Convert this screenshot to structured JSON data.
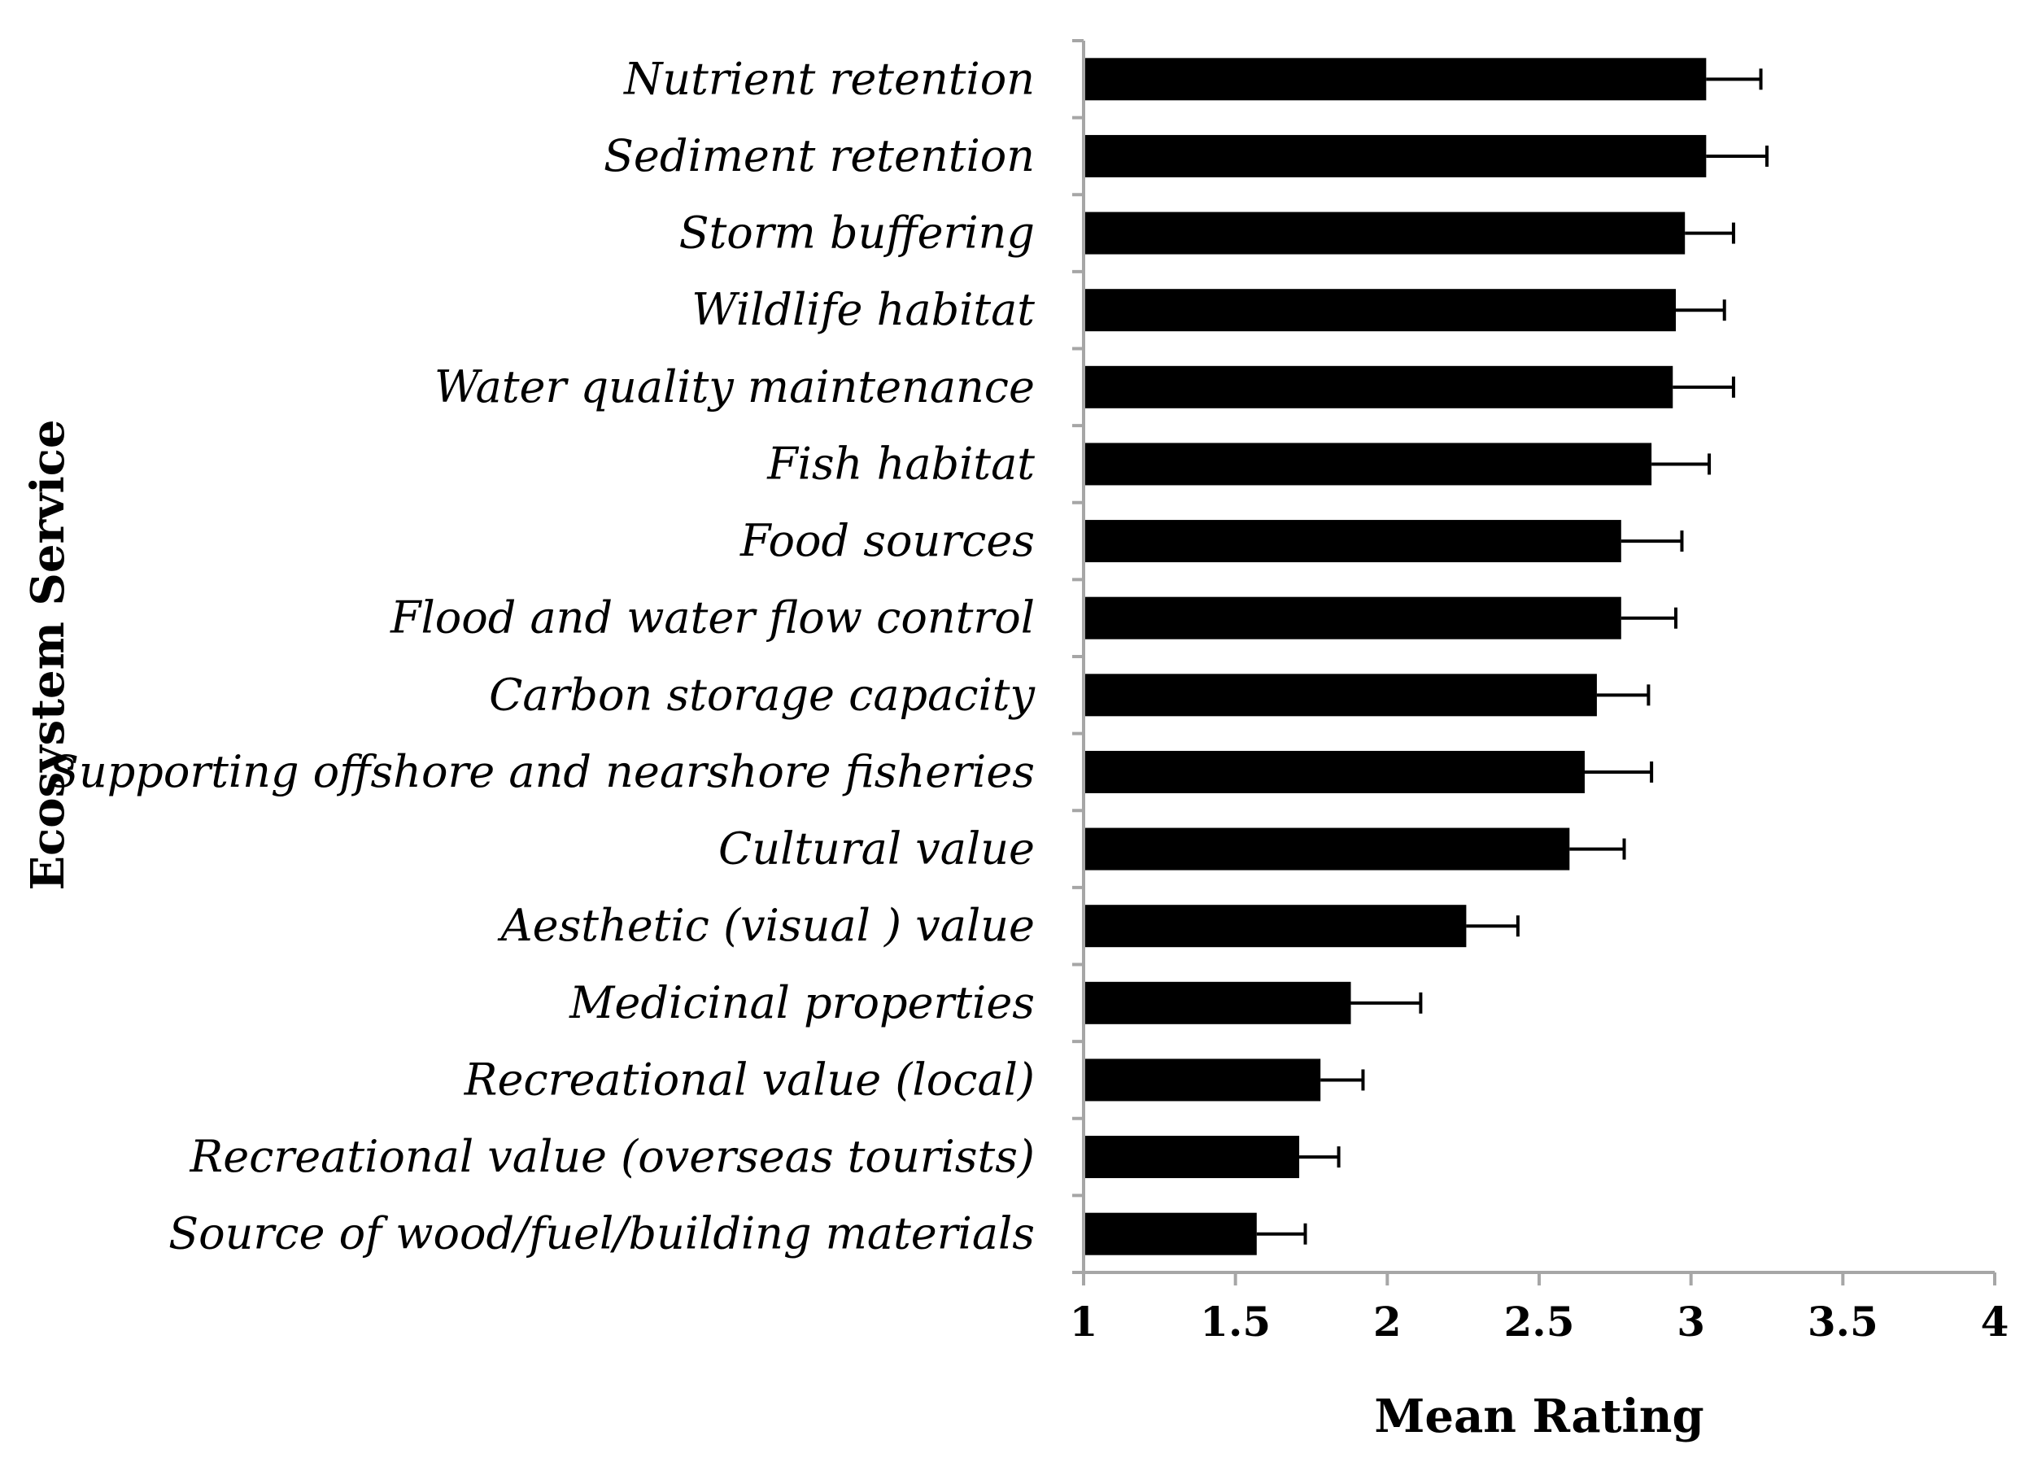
{
  "chart_data": {
    "type": "bar",
    "orientation": "horizontal",
    "title": "",
    "xlabel": "Mean Rating",
    "ylabel": "Ecosystem Service",
    "xlim": [
      1,
      4
    ],
    "xticks": [
      1,
      1.5,
      2,
      2.5,
      3,
      3.5,
      4
    ],
    "xtick_labels": [
      "1",
      "1.5",
      "2",
      "2.5",
      "3",
      "3.5",
      "4"
    ],
    "grid": false,
    "legend": "none",
    "colors": {
      "bar": "#000000",
      "axis": "#a6a6a6",
      "error": "#000000"
    },
    "categories": [
      "Nutrient retention",
      "Sediment retention",
      "Storm buffering",
      "Wildlife habitat",
      "Water quality maintenance",
      "Fish habitat",
      "Food sources",
      "Flood and water flow control",
      "Carbon storage capacity",
      "Supporting offshore and nearshore fisheries",
      "Cultural value",
      "Aesthetic (visual ) value",
      "Medicinal properties",
      "Recreational value (local)",
      "Recreational value (overseas tourists)",
      "Source of wood/fuel/building materials"
    ],
    "values": [
      3.05,
      3.05,
      2.98,
      2.95,
      2.94,
      2.87,
      2.77,
      2.77,
      2.69,
      2.65,
      2.6,
      2.26,
      1.88,
      1.78,
      1.71,
      1.57
    ],
    "errors": [
      0.18,
      0.2,
      0.16,
      0.16,
      0.2,
      0.19,
      0.2,
      0.18,
      0.17,
      0.22,
      0.18,
      0.17,
      0.23,
      0.14,
      0.13,
      0.16
    ]
  }
}
